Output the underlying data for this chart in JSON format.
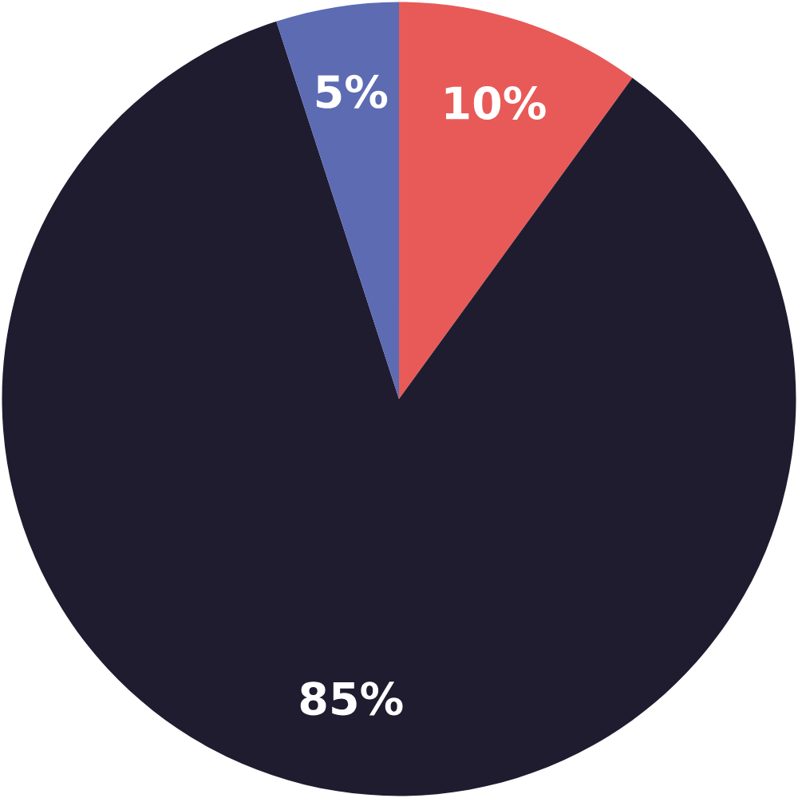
{
  "chart_data": {
    "type": "pie",
    "categories": [
      null,
      null,
      null
    ],
    "values": [
      10,
      85,
      5
    ],
    "colors": [
      "#e85a58",
      "#1f1c2f",
      "#5d6bb3"
    ],
    "value_labels": [
      "10%",
      "85%",
      "5%"
    ]
  }
}
